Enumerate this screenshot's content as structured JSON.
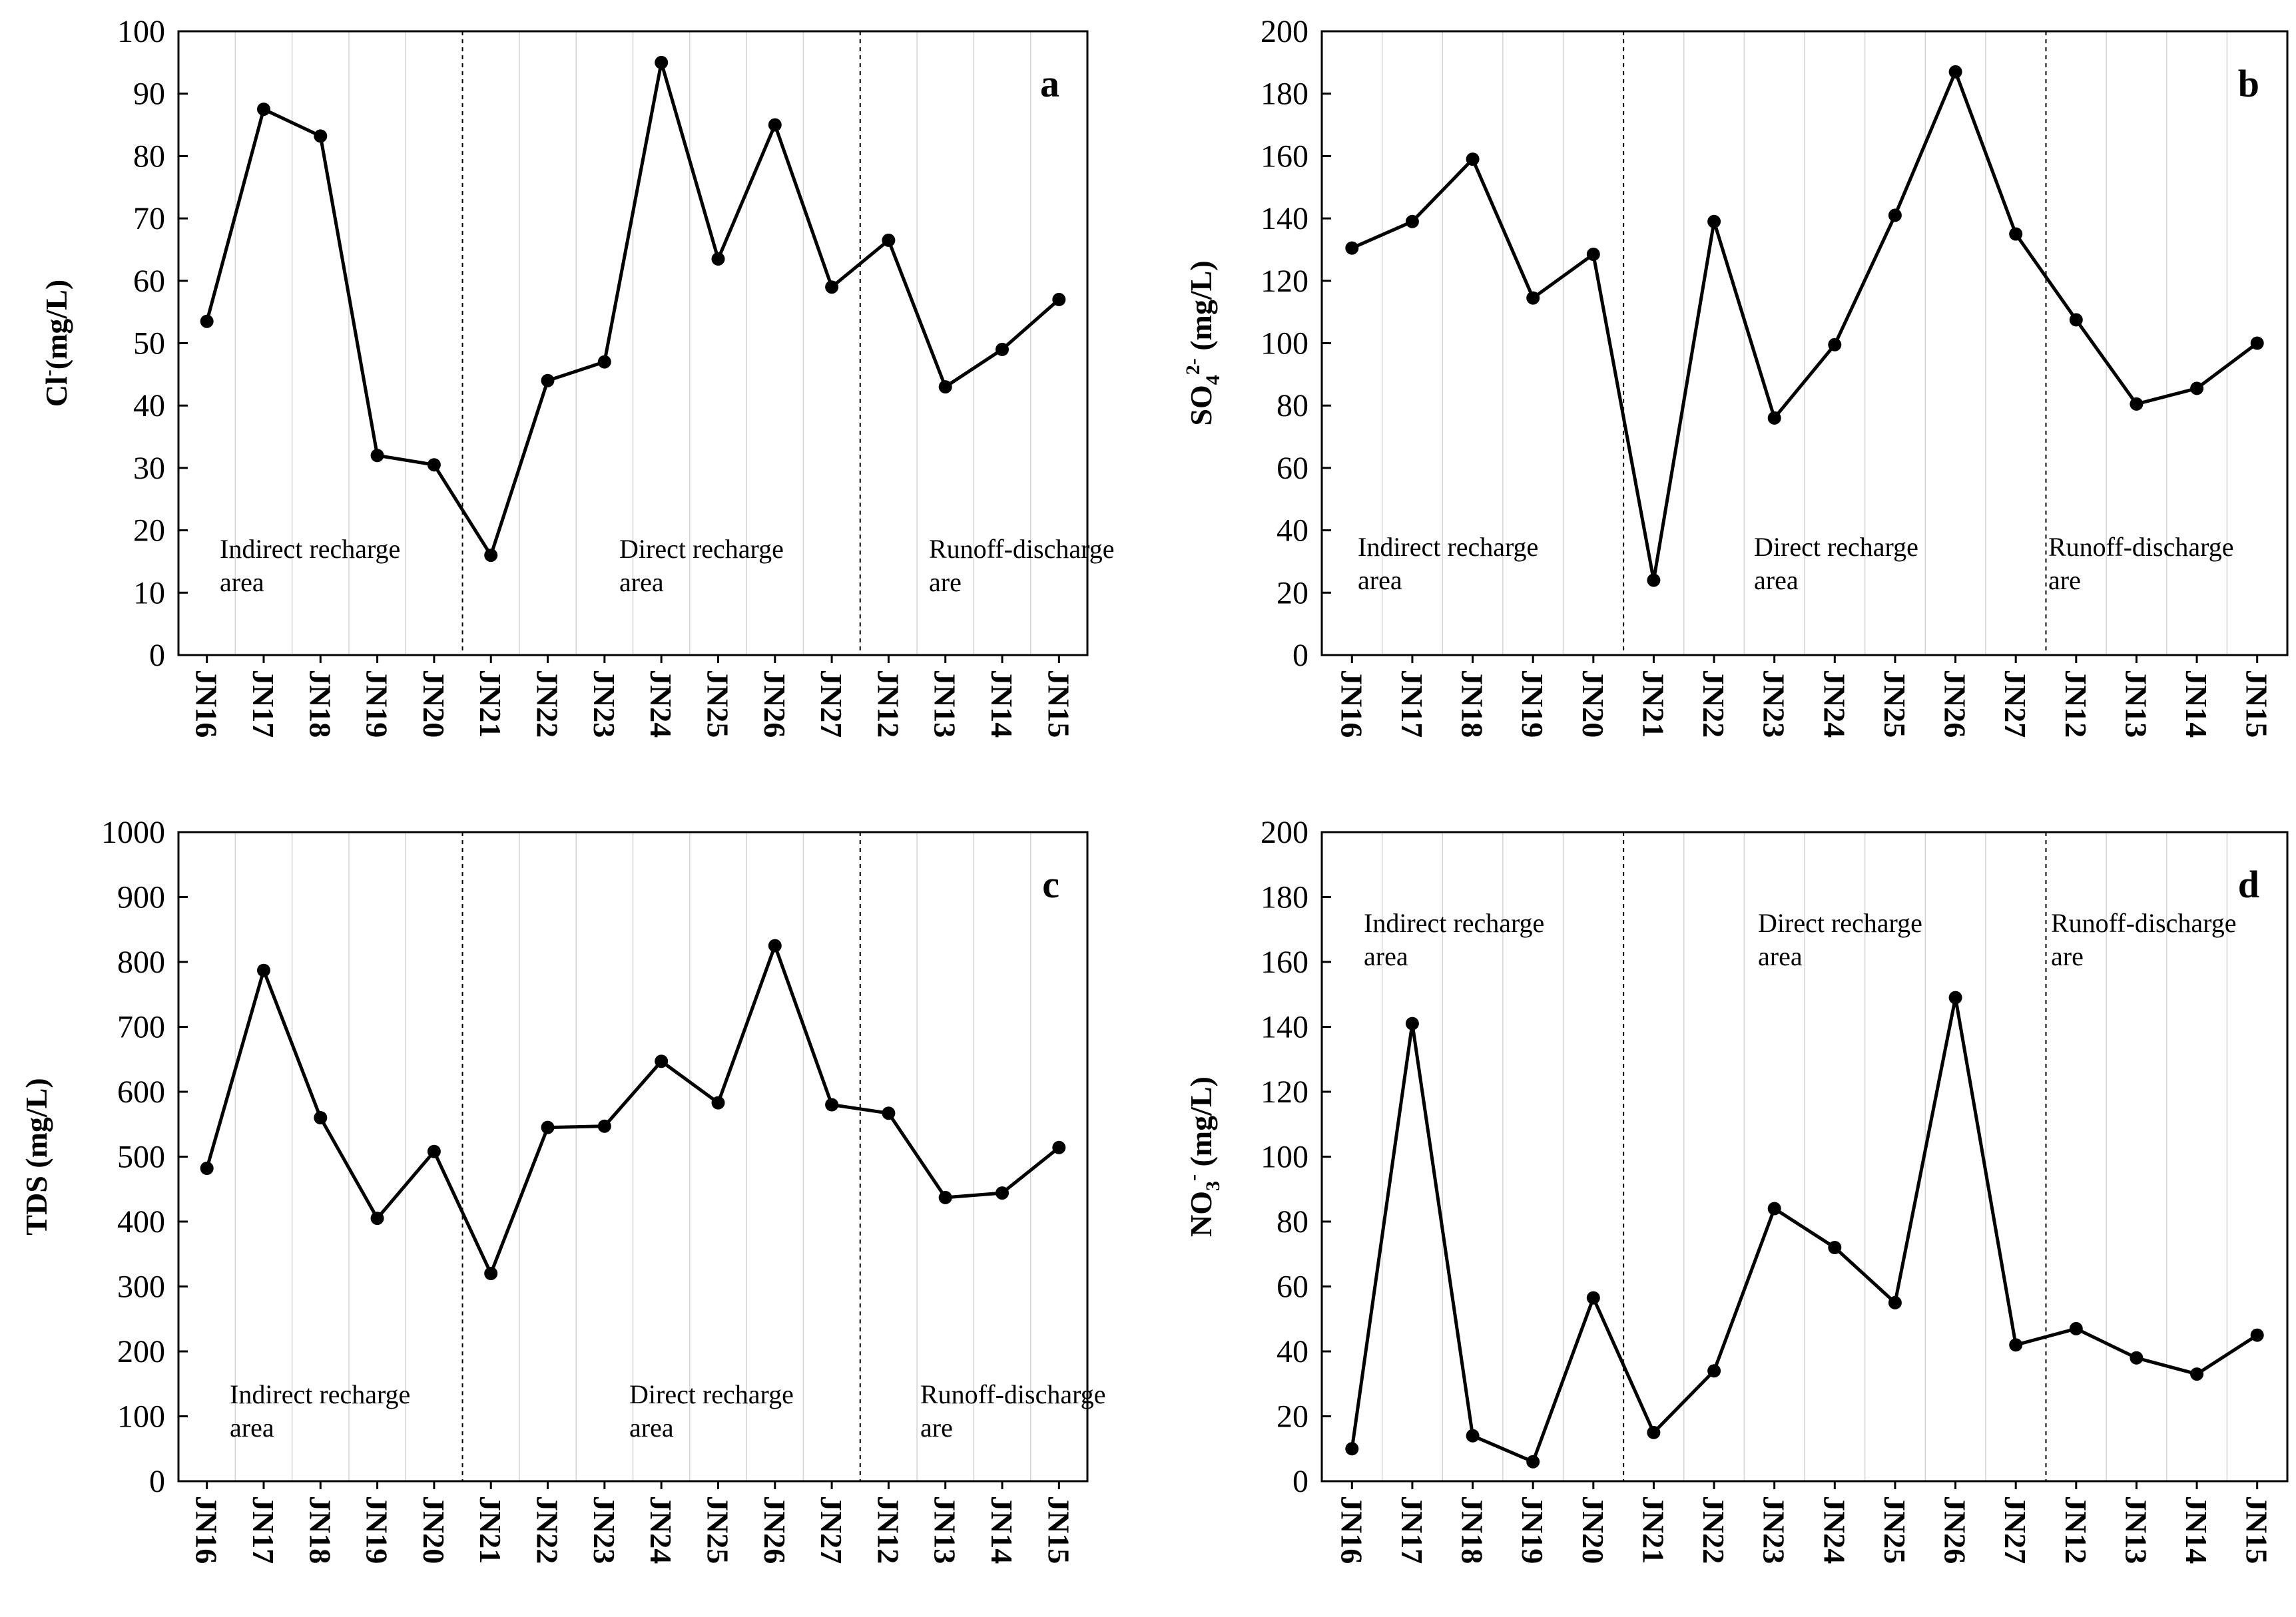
{
  "chart_data": [
    {
      "panel": "a",
      "type": "line",
      "ylabel_main": "Cl",
      "ylabel_sup": "-",
      "ylabel_rest": "(mg/L)",
      "ylim": [
        0,
        100
      ],
      "yticks": [
        0,
        10,
        20,
        30,
        40,
        50,
        60,
        70,
        80,
        90,
        100
      ],
      "categories": [
        "JN16",
        "JN17",
        "JN18",
        "JN19",
        "JN20",
        "JN21",
        "JN22",
        "JN23",
        "JN24",
        "JN25",
        "JN26",
        "JN27",
        "JN12",
        "JN13",
        "JN14",
        "JN15"
      ],
      "values": [
        53.5,
        87.5,
        83.2,
        32,
        30.5,
        16,
        44,
        47,
        95,
        63.5,
        85,
        59,
        66.5,
        43,
        49,
        57
      ],
      "dividers_after": [
        4,
        11
      ],
      "areas": [
        {
          "line1": "Indirect recharge",
          "line2": "area"
        },
        {
          "line1": "Direct recharge",
          "line2": "area"
        },
        {
          "line1": "Runoff-discharge",
          "line2": "are"
        }
      ]
    },
    {
      "panel": "b",
      "type": "line",
      "ylabel_main": "SO",
      "ylabel_sub": "4",
      "ylabel_sup": "2-",
      "ylabel_rest": " (mg/L)",
      "ylim": [
        0,
        200
      ],
      "yticks": [
        0,
        20,
        40,
        60,
        80,
        100,
        120,
        140,
        160,
        180,
        200
      ],
      "categories": [
        "JN16",
        "JN17",
        "JN18",
        "JN19",
        "JN20",
        "JN21",
        "JN22",
        "JN23",
        "JN24",
        "JN25",
        "JN26",
        "JN27",
        "JN12",
        "JN13",
        "JN14",
        "JN15"
      ],
      "values": [
        130.5,
        139,
        159,
        114.5,
        128.5,
        24,
        139,
        76,
        99.5,
        141,
        187,
        135,
        107.5,
        80.5,
        85.5,
        100
      ],
      "dividers_after": [
        4,
        11
      ],
      "areas": [
        {
          "line1": "Indirect recharge",
          "line2": "area"
        },
        {
          "line1": "Direct recharge",
          "line2": "area"
        },
        {
          "line1": "Runoff-discharge",
          "line2": "are"
        }
      ]
    },
    {
      "panel": "c",
      "type": "line",
      "ylabel_main": "TDS (mg/L)",
      "ylim": [
        0,
        1000
      ],
      "yticks": [
        0,
        100,
        200,
        300,
        400,
        500,
        600,
        700,
        800,
        900,
        1000
      ],
      "categories": [
        "JN16",
        "JN17",
        "JN18",
        "JN19",
        "JN20",
        "JN21",
        "JN22",
        "JN23",
        "JN24",
        "JN25",
        "JN26",
        "JN27",
        "JN12",
        "JN13",
        "JN14",
        "JN15"
      ],
      "values": [
        482,
        787,
        560,
        405,
        508,
        320,
        545,
        547,
        647,
        583,
        825,
        580,
        567,
        437,
        444,
        514
      ],
      "dividers_after": [
        4,
        11
      ],
      "areas": [
        {
          "line1": "Indirect recharge",
          "line2": "area"
        },
        {
          "line1": "Direct recharge",
          "line2": "area"
        },
        {
          "line1": "Runoff-discharge",
          "line2": "are"
        }
      ]
    },
    {
      "panel": "d",
      "type": "line",
      "ylabel_main": "NO",
      "ylabel_sub": "3",
      "ylabel_sup": "-",
      "ylabel_rest": " (mg/L)",
      "ylim": [
        0,
        200
      ],
      "yticks": [
        0,
        20,
        40,
        60,
        80,
        100,
        120,
        140,
        160,
        180,
        200
      ],
      "categories": [
        "JN16",
        "JN17",
        "JN18",
        "JN19",
        "JN20",
        "JN21",
        "JN22",
        "JN23",
        "JN24",
        "JN25",
        "JN26",
        "JN27",
        "JN12",
        "JN13",
        "JN14",
        "JN15"
      ],
      "values": [
        10,
        141,
        14,
        6,
        56.5,
        15,
        34,
        84,
        72,
        55,
        149,
        42,
        47,
        38,
        33,
        45
      ],
      "dividers_after": [
        4,
        11
      ],
      "areas": [
        {
          "line1": "Indirect recharge",
          "line2": "area"
        },
        {
          "line1": "Direct recharge",
          "line2": "area"
        },
        {
          "line1": "Runoff-discharge",
          "line2": "are"
        }
      ]
    }
  ]
}
